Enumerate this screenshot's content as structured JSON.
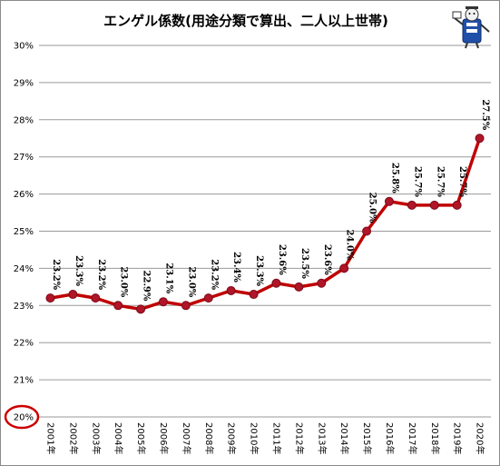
{
  "chart_data": {
    "type": "line",
    "title": "エンゲル係数(用途分類で算出、二人以上世帯)",
    "categories": [
      "2001年",
      "2002年",
      "2003年",
      "2004年",
      "2005年",
      "2006年",
      "2007年",
      "2008年",
      "2009年",
      "2010年",
      "2011年",
      "2012年",
      "2013年",
      "2014年",
      "2015年",
      "2016年",
      "2017年",
      "2018年",
      "2019年",
      "2020年"
    ],
    "series": [
      {
        "values": [
          23.2,
          23.3,
          23.2,
          23.0,
          22.9,
          23.1,
          23.0,
          23.2,
          23.4,
          23.3,
          23.6,
          23.5,
          23.6,
          24.0,
          25.0,
          25.8,
          25.7,
          25.7,
          25.7,
          27.5
        ],
        "labels": [
          "23.2%",
          "23.3%",
          "23.2%",
          "23.0%",
          "22.9%",
          "23.1%",
          "23.0%",
          "23.2%",
          "23.4%",
          "23.3%",
          "23.6%",
          "23.5%",
          "23.6%",
          "24.0%",
          "25.0%",
          "25.8%",
          "25.7%",
          "25.7%",
          "25.7%",
          "27.5%"
        ]
      }
    ],
    "yticks": [
      "20%",
      "21%",
      "22%",
      "23%",
      "24%",
      "25%",
      "26%",
      "27%",
      "28%",
      "29%",
      "30%"
    ],
    "ylim": [
      20,
      30
    ],
    "grid": true,
    "line_color": "#c00000",
    "marker_color": "#b01528",
    "highlight_color": "#cc0000",
    "legend": "none"
  },
  "decoration": {
    "mascot": "mascot-figure-icon"
  }
}
